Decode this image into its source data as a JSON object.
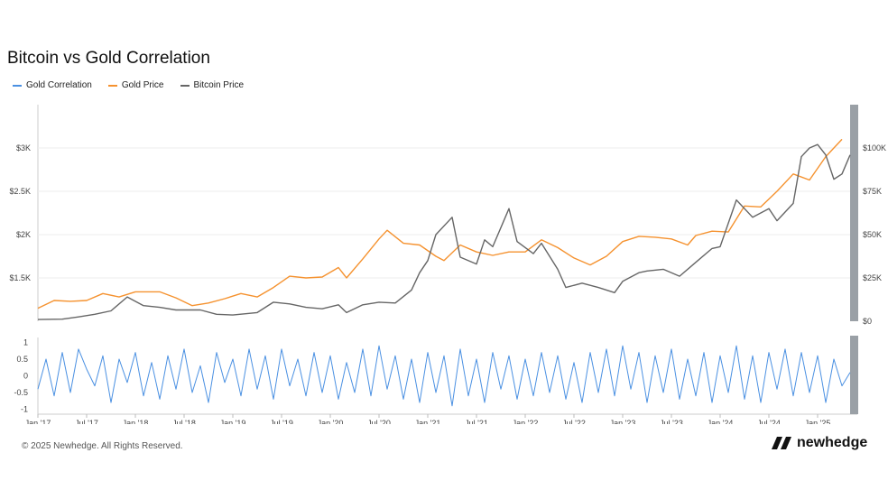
{
  "header": {
    "title": "Bitcoin vs Gold Correlation"
  },
  "legend": [
    {
      "label": "Gold Correlation",
      "color": "#4a90e2"
    },
    {
      "label": "Gold Price",
      "color": "#f5922f"
    },
    {
      "label": "Bitcoin Price",
      "color": "#666666"
    }
  ],
  "footer": {
    "copyright": "© 2025 Newhedge. All Rights Reserved.",
    "brand": "newhedge",
    "brand_icon": "newhedge-logo-icon"
  },
  "chart_data": {
    "type": "line",
    "x_range": [
      "2017-01",
      "2025-05"
    ],
    "x_ticks": [
      "Jan '17",
      "Jul '17",
      "Jan '18",
      "Jul '18",
      "Jan '19",
      "Jul '19",
      "Jan '20",
      "Jul '20",
      "Jan '21",
      "Jul '21",
      "Jan '22",
      "Jul '22",
      "Jan '23",
      "Jul '23",
      "Jan '24",
      "Jul '24",
      "Jan '25"
    ],
    "left_axis": {
      "ticks": [
        "$1.5K",
        "$2K",
        "$2.5K",
        "$3K"
      ],
      "values": [
        1500,
        2000,
        2500,
        3000
      ],
      "range": [
        1000,
        3500
      ]
    },
    "right_axis": {
      "ticks": [
        "$0",
        "$25K",
        "$50K",
        "$75K",
        "$100K"
      ],
      "values": [
        0,
        25000,
        50000,
        75000,
        100000
      ],
      "range": [
        0,
        125000
      ]
    },
    "correlation_axis": {
      "ticks": [
        "1",
        "0.5",
        "0",
        "-0.5",
        "-1"
      ],
      "values": [
        1,
        0.5,
        0,
        -0.5,
        -1
      ],
      "range": [
        -1.15,
        1.15
      ]
    },
    "series": [
      {
        "name": "Gold Price",
        "axis": "left",
        "points": [
          [
            "2017-01",
            1150
          ],
          [
            "2017-03",
            1240
          ],
          [
            "2017-05",
            1230
          ],
          [
            "2017-07",
            1240
          ],
          [
            "2017-09",
            1320
          ],
          [
            "2017-11",
            1280
          ],
          [
            "2018-01",
            1340
          ],
          [
            "2018-04",
            1340
          ],
          [
            "2018-06",
            1270
          ],
          [
            "2018-08",
            1180
          ],
          [
            "2018-10",
            1210
          ],
          [
            "2018-12",
            1260
          ],
          [
            "2019-02",
            1320
          ],
          [
            "2019-04",
            1280
          ],
          [
            "2019-06",
            1390
          ],
          [
            "2019-08",
            1520
          ],
          [
            "2019-10",
            1500
          ],
          [
            "2019-12",
            1510
          ],
          [
            "2020-02",
            1620
          ],
          [
            "2020-03",
            1500
          ],
          [
            "2020-05",
            1720
          ],
          [
            "2020-07",
            1950
          ],
          [
            "2020-08",
            2050
          ],
          [
            "2020-10",
            1900
          ],
          [
            "2020-12",
            1880
          ],
          [
            "2021-02",
            1750
          ],
          [
            "2021-03",
            1700
          ],
          [
            "2021-05",
            1880
          ],
          [
            "2021-07",
            1800
          ],
          [
            "2021-09",
            1760
          ],
          [
            "2021-11",
            1800
          ],
          [
            "2022-01",
            1800
          ],
          [
            "2022-03",
            1940
          ],
          [
            "2022-05",
            1850
          ],
          [
            "2022-07",
            1730
          ],
          [
            "2022-09",
            1650
          ],
          [
            "2022-11",
            1750
          ],
          [
            "2023-01",
            1920
          ],
          [
            "2023-03",
            1980
          ],
          [
            "2023-05",
            1970
          ],
          [
            "2023-07",
            1950
          ],
          [
            "2023-09",
            1880
          ],
          [
            "2023-10",
            1990
          ],
          [
            "2023-12",
            2040
          ],
          [
            "2024-02",
            2030
          ],
          [
            "2024-04",
            2330
          ],
          [
            "2024-06",
            2320
          ],
          [
            "2024-08",
            2500
          ],
          [
            "2024-10",
            2700
          ],
          [
            "2024-12",
            2630
          ],
          [
            "2025-02",
            2900
          ],
          [
            "2025-04",
            3100
          ]
        ]
      },
      {
        "name": "Bitcoin Price",
        "axis": "right",
        "points": [
          [
            "2017-01",
            1000
          ],
          [
            "2017-04",
            1200
          ],
          [
            "2017-06",
            2500
          ],
          [
            "2017-08",
            4000
          ],
          [
            "2017-10",
            6000
          ],
          [
            "2017-12",
            14000
          ],
          [
            "2018-02",
            9000
          ],
          [
            "2018-04",
            8000
          ],
          [
            "2018-06",
            6500
          ],
          [
            "2018-09",
            6500
          ],
          [
            "2018-11",
            4000
          ],
          [
            "2019-01",
            3600
          ],
          [
            "2019-04",
            5000
          ],
          [
            "2019-06",
            11000
          ],
          [
            "2019-08",
            10000
          ],
          [
            "2019-10",
            8000
          ],
          [
            "2019-12",
            7200
          ],
          [
            "2020-02",
            9500
          ],
          [
            "2020-03",
            5000
          ],
          [
            "2020-05",
            9500
          ],
          [
            "2020-07",
            11000
          ],
          [
            "2020-09",
            10500
          ],
          [
            "2020-11",
            18000
          ],
          [
            "2020-12",
            28000
          ],
          [
            "2021-01",
            35000
          ],
          [
            "2021-02",
            50000
          ],
          [
            "2021-04",
            60000
          ],
          [
            "2021-05",
            37000
          ],
          [
            "2021-07",
            33000
          ],
          [
            "2021-08",
            47000
          ],
          [
            "2021-09",
            43000
          ],
          [
            "2021-11",
            65000
          ],
          [
            "2021-12",
            46000
          ],
          [
            "2022-02",
            39000
          ],
          [
            "2022-03",
            45000
          ],
          [
            "2022-05",
            30000
          ],
          [
            "2022-06",
            19500
          ],
          [
            "2022-08",
            22000
          ],
          [
            "2022-10",
            19500
          ],
          [
            "2022-12",
            16500
          ],
          [
            "2023-01",
            23000
          ],
          [
            "2023-03",
            28000
          ],
          [
            "2023-04",
            29000
          ],
          [
            "2023-06",
            30000
          ],
          [
            "2023-08",
            26000
          ],
          [
            "2023-10",
            34000
          ],
          [
            "2023-12",
            42000
          ],
          [
            "2024-01",
            43000
          ],
          [
            "2024-03",
            70000
          ],
          [
            "2024-05",
            60000
          ],
          [
            "2024-07",
            65000
          ],
          [
            "2024-08",
            58000
          ],
          [
            "2024-10",
            68000
          ],
          [
            "2024-11",
            95000
          ],
          [
            "2024-12",
            100000
          ],
          [
            "2025-01",
            102000
          ],
          [
            "2025-02",
            96000
          ],
          [
            "2025-03",
            82000
          ],
          [
            "2025-04",
            85000
          ],
          [
            "2025-05",
            96000
          ]
        ]
      },
      {
        "name": "Gold Correlation",
        "axis": "correlation",
        "points": [
          [
            "2017-01",
            -0.4
          ],
          [
            "2017-02",
            0.5
          ],
          [
            "2017-03",
            -0.6
          ],
          [
            "2017-04",
            0.7
          ],
          [
            "2017-05",
            -0.5
          ],
          [
            "2017-06",
            0.8
          ],
          [
            "2017-07",
            0.2
          ],
          [
            "2017-08",
            -0.3
          ],
          [
            "2017-09",
            0.6
          ],
          [
            "2017-10",
            -0.8
          ],
          [
            "2017-11",
            0.5
          ],
          [
            "2017-12",
            -0.2
          ],
          [
            "2018-01",
            0.7
          ],
          [
            "2018-02",
            -0.6
          ],
          [
            "2018-03",
            0.4
          ],
          [
            "2018-04",
            -0.7
          ],
          [
            "2018-05",
            0.6
          ],
          [
            "2018-06",
            -0.4
          ],
          [
            "2018-07",
            0.8
          ],
          [
            "2018-08",
            -0.5
          ],
          [
            "2018-09",
            0.3
          ],
          [
            "2018-10",
            -0.8
          ],
          [
            "2018-11",
            0.7
          ],
          [
            "2018-12",
            -0.2
          ],
          [
            "2019-01",
            0.5
          ],
          [
            "2019-02",
            -0.6
          ],
          [
            "2019-03",
            0.8
          ],
          [
            "2019-04",
            -0.4
          ],
          [
            "2019-05",
            0.6
          ],
          [
            "2019-06",
            -0.7
          ],
          [
            "2019-07",
            0.8
          ],
          [
            "2019-08",
            -0.3
          ],
          [
            "2019-09",
            0.5
          ],
          [
            "2019-10",
            -0.6
          ],
          [
            "2019-11",
            0.7
          ],
          [
            "2019-12",
            -0.5
          ],
          [
            "2020-01",
            0.6
          ],
          [
            "2020-02",
            -0.7
          ],
          [
            "2020-03",
            0.4
          ],
          [
            "2020-04",
            -0.5
          ],
          [
            "2020-05",
            0.8
          ],
          [
            "2020-06",
            -0.6
          ],
          [
            "2020-07",
            0.9
          ],
          [
            "2020-08",
            -0.4
          ],
          [
            "2020-09",
            0.6
          ],
          [
            "2020-10",
            -0.7
          ],
          [
            "2020-11",
            0.5
          ],
          [
            "2020-12",
            -0.8
          ],
          [
            "2021-01",
            0.7
          ],
          [
            "2021-02",
            -0.5
          ],
          [
            "2021-03",
            0.6
          ],
          [
            "2021-04",
            -0.9
          ],
          [
            "2021-05",
            0.8
          ],
          [
            "2021-06",
            -0.6
          ],
          [
            "2021-07",
            0.5
          ],
          [
            "2021-08",
            -0.8
          ],
          [
            "2021-09",
            0.7
          ],
          [
            "2021-10",
            -0.4
          ],
          [
            "2021-11",
            0.6
          ],
          [
            "2021-12",
            -0.7
          ],
          [
            "2022-01",
            0.5
          ],
          [
            "2022-02",
            -0.6
          ],
          [
            "2022-03",
            0.7
          ],
          [
            "2022-04",
            -0.5
          ],
          [
            "2022-05",
            0.6
          ],
          [
            "2022-06",
            -0.7
          ],
          [
            "2022-07",
            0.4
          ],
          [
            "2022-08",
            -0.8
          ],
          [
            "2022-09",
            0.7
          ],
          [
            "2022-10",
            -0.5
          ],
          [
            "2022-11",
            0.8
          ],
          [
            "2022-12",
            -0.6
          ],
          [
            "2023-01",
            0.9
          ],
          [
            "2023-02",
            -0.4
          ],
          [
            "2023-03",
            0.7
          ],
          [
            "2023-04",
            -0.8
          ],
          [
            "2023-05",
            0.6
          ],
          [
            "2023-06",
            -0.5
          ],
          [
            "2023-07",
            0.8
          ],
          [
            "2023-08",
            -0.7
          ],
          [
            "2023-09",
            0.5
          ],
          [
            "2023-10",
            -0.6
          ],
          [
            "2023-11",
            0.7
          ],
          [
            "2023-12",
            -0.8
          ],
          [
            "2024-01",
            0.6
          ],
          [
            "2024-02",
            -0.5
          ],
          [
            "2024-03",
            0.9
          ],
          [
            "2024-04",
            -0.7
          ],
          [
            "2024-05",
            0.6
          ],
          [
            "2024-06",
            -0.8
          ],
          [
            "2024-07",
            0.7
          ],
          [
            "2024-08",
            -0.4
          ],
          [
            "2024-09",
            0.8
          ],
          [
            "2024-10",
            -0.6
          ],
          [
            "2024-11",
            0.7
          ],
          [
            "2024-12",
            -0.5
          ],
          [
            "2025-01",
            0.6
          ],
          [
            "2025-02",
            -0.8
          ],
          [
            "2025-03",
            0.5
          ],
          [
            "2025-04",
            -0.3
          ],
          [
            "2025-05",
            0.1
          ]
        ]
      }
    ],
    "grid": true,
    "legend_position": "top-left"
  }
}
